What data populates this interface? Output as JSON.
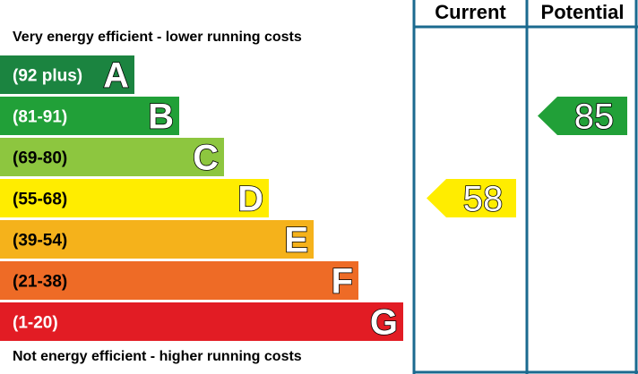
{
  "chart_data": {
    "type": "bar",
    "top_caption": "Very energy efficient - lower running costs",
    "bottom_caption": "Not energy efficient - higher running costs",
    "columns": [
      "Current",
      "Potential"
    ],
    "bands": [
      {
        "letter": "A",
        "range": "(92 plus)",
        "color": "#1b8440",
        "text_color": "#ffffff"
      },
      {
        "letter": "B",
        "range": "(81-91)",
        "color": "#21a038",
        "text_color": "#ffffff"
      },
      {
        "letter": "C",
        "range": "(69-80)",
        "color": "#8dc63f",
        "text_color": "#000000"
      },
      {
        "letter": "D",
        "range": "(55-68)",
        "color": "#ffed00",
        "text_color": "#000000"
      },
      {
        "letter": "E",
        "range": "(39-54)",
        "color": "#f5b21b",
        "text_color": "#000000"
      },
      {
        "letter": "F",
        "range": "(21-38)",
        "color": "#ee6b26",
        "text_color": "#000000"
      },
      {
        "letter": "G",
        "range": "(1-20)",
        "color": "#e21c24",
        "text_color": "#ffffff"
      }
    ],
    "ratings": {
      "current": {
        "value": "58",
        "band": "D",
        "color": "#ffed00"
      },
      "potential": {
        "value": "85",
        "band": "B",
        "color": "#21a038"
      }
    },
    "frame_color": "#1b6a8f"
  }
}
